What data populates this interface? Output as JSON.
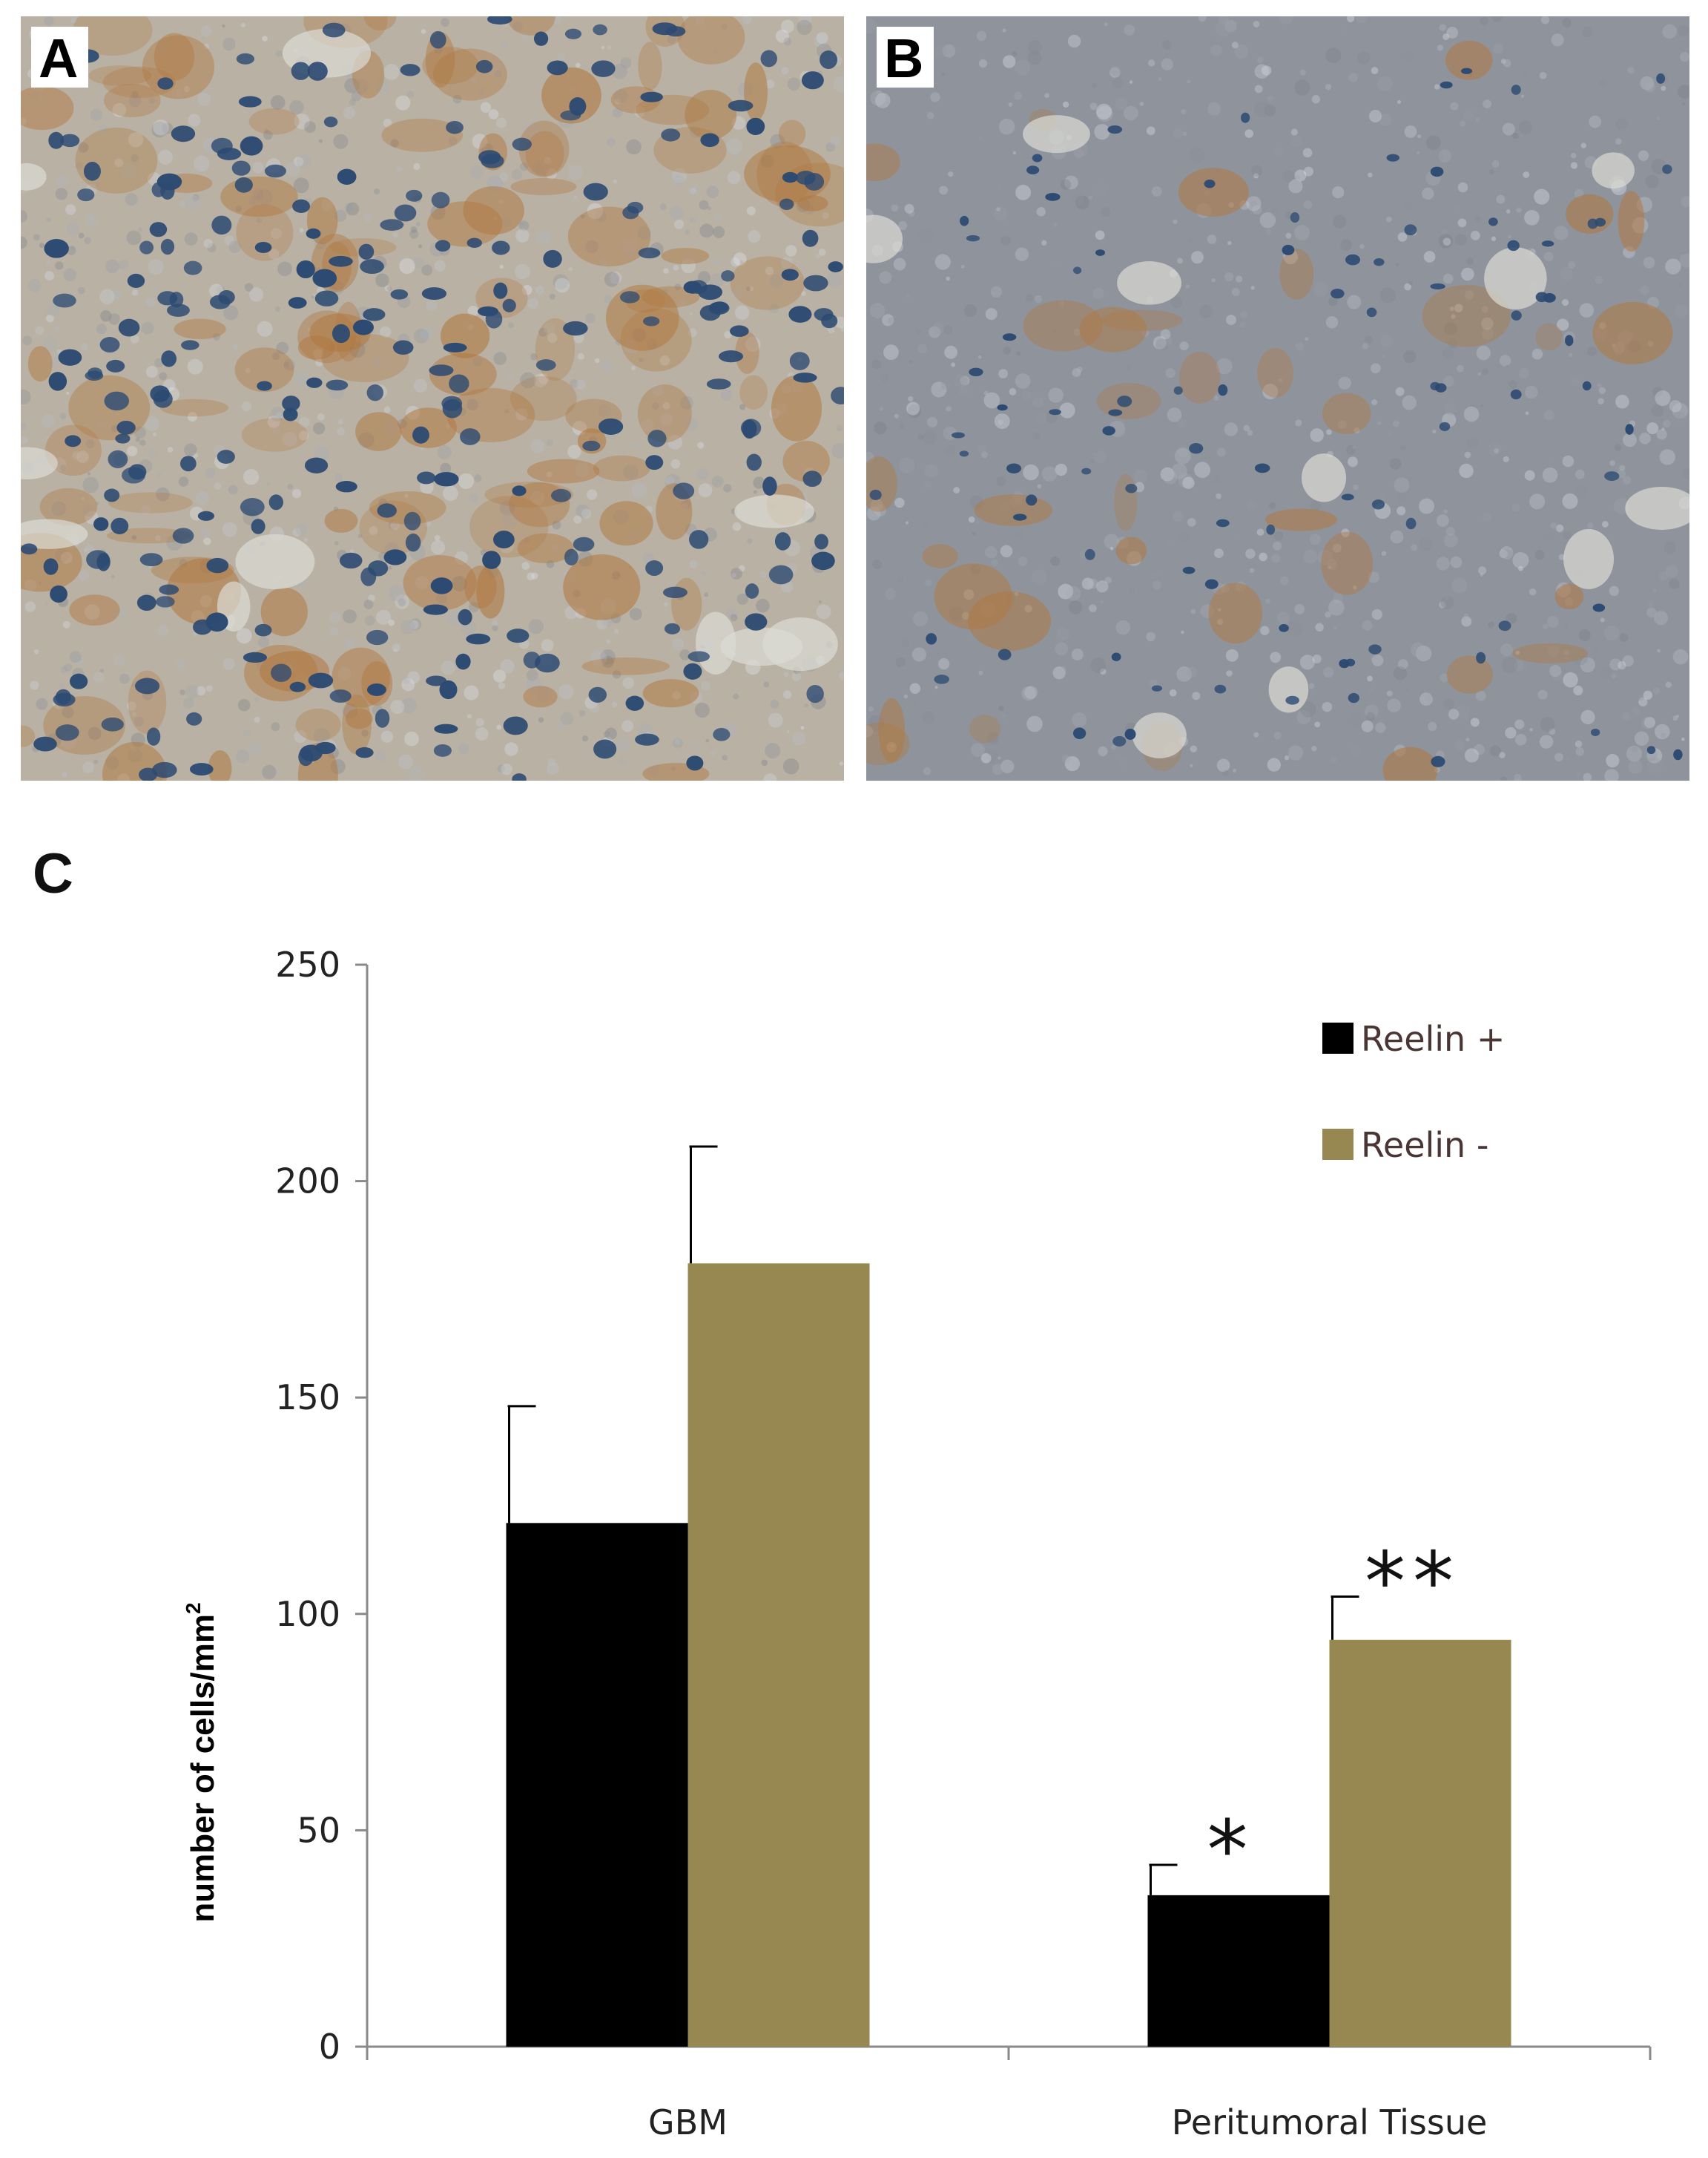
{
  "panels": {
    "a_label": "A",
    "b_label": "B",
    "c_label": "C"
  },
  "chart_data": {
    "type": "bar",
    "categories": [
      "GBM",
      "Peritumoral Tissue"
    ],
    "series": [
      {
        "name": "Reelin +",
        "values": [
          121,
          35
        ],
        "errors": [
          27,
          7
        ],
        "color": "#000000"
      },
      {
        "name": "Reelin -",
        "values": [
          181,
          94
        ],
        "errors": [
          27,
          10
        ],
        "color": "#968850"
      }
    ],
    "ylabel": "number of cells/mm",
    "ylabel_superscript": "2",
    "ylim": [
      0,
      250
    ],
    "yticks": [
      0,
      50,
      100,
      150,
      200,
      250
    ],
    "legend_position": "top-right",
    "grid": false,
    "annotations": [
      {
        "category": "Peritumoral Tissue",
        "series": "Reelin +",
        "text": "*"
      },
      {
        "category": "Peritumoral Tissue",
        "series": "Reelin -",
        "text": "**"
      }
    ]
  },
  "colors": {
    "stain_background_a": "#b9b1a3",
    "stain_background_b": "#8f949c",
    "nuclei": "#2c4a72",
    "brown_stain": "#b07840"
  }
}
